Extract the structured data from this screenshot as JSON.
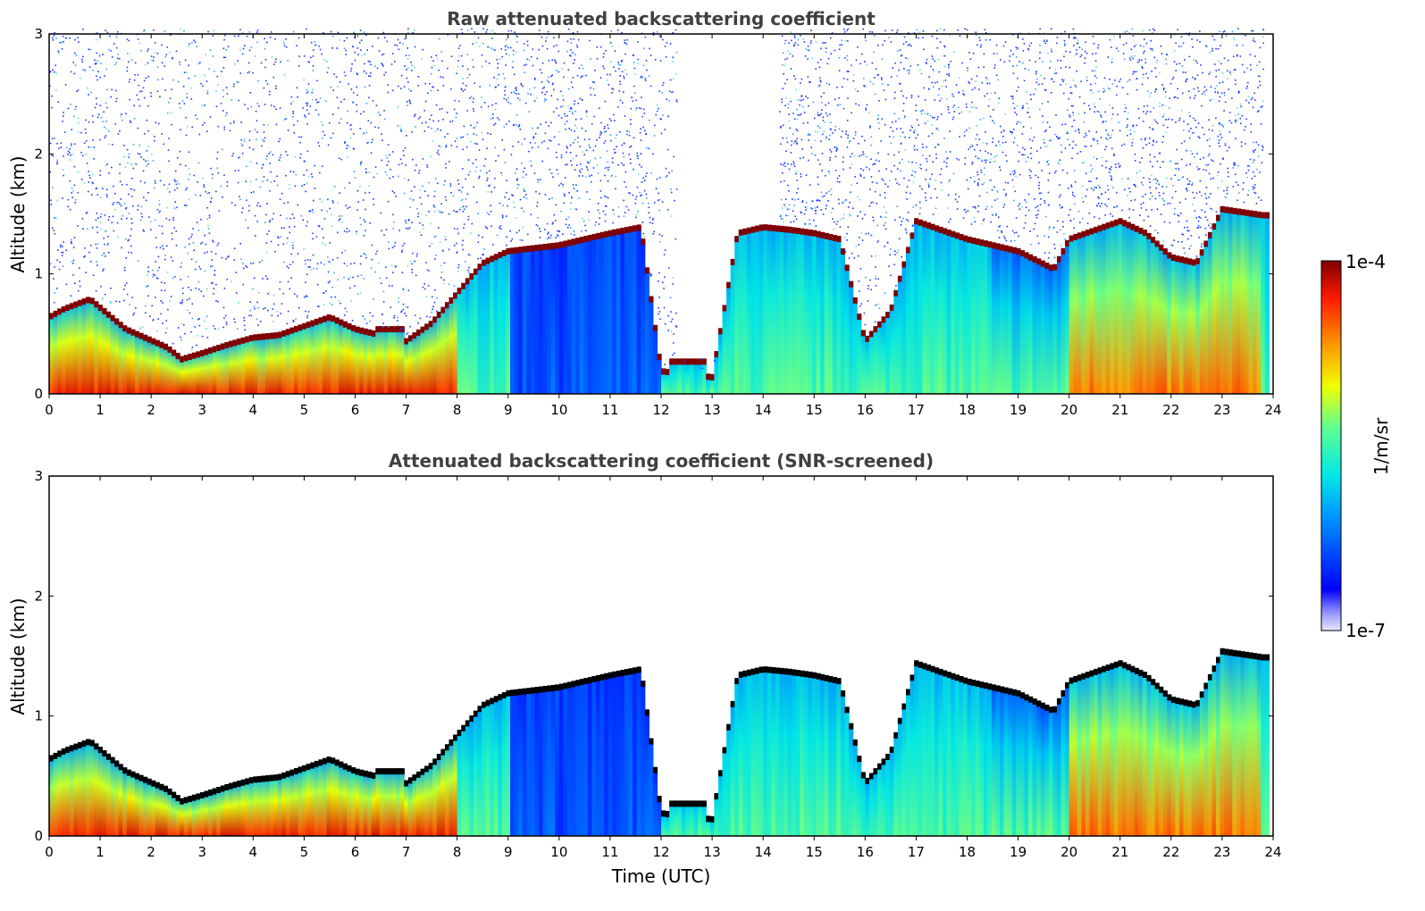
{
  "chart_data": [
    {
      "type": "heatmap",
      "title": "Raw attenuated backscattering coefficient",
      "xlabel": "",
      "ylabel": "Altitude (km)",
      "xlim": [
        0,
        24
      ],
      "ylim": [
        0,
        3
      ],
      "x_ticks": [
        "0",
        "1",
        "2",
        "3",
        "4",
        "5",
        "6",
        "7",
        "8",
        "9",
        "10",
        "11",
        "12",
        "13",
        "14",
        "15",
        "16",
        "17",
        "18",
        "19",
        "20",
        "21",
        "22",
        "23",
        "24"
      ],
      "y_ticks": [
        "0",
        "1",
        "2",
        "3"
      ],
      "noise_above_layer": true,
      "cloud_color": "#7f0000",
      "colorbar": {
        "label": "1/m/sr",
        "min_label": "1e-7",
        "max_label": "1e-4",
        "scale": "log"
      },
      "cloud_base_series": {
        "name": "",
        "x": [
          0,
          0.3,
          0.8,
          1.5,
          2.3,
          2.6,
          3.0,
          3.5,
          4.0,
          4.5,
          5.5,
          6.0,
          6.5,
          7.0,
          7.5,
          8.0,
          8.5,
          9.0,
          10.0,
          11.0,
          11.6,
          12.0,
          13.0,
          13.5,
          14.0,
          14.5,
          15.0,
          15.5,
          16.0,
          16.5,
          17.0,
          18.0,
          19.0,
          19.7,
          20.0,
          21.0,
          21.5,
          22.0,
          22.5,
          23.0,
          23.8
        ],
        "y": [
          0.65,
          0.72,
          0.8,
          0.55,
          0.4,
          0.3,
          0.35,
          0.42,
          0.48,
          0.5,
          0.65,
          0.55,
          0.5,
          0.45,
          0.6,
          0.85,
          1.1,
          1.2,
          1.25,
          1.35,
          1.4,
          0.2,
          0.15,
          1.35,
          1.4,
          1.38,
          1.35,
          1.3,
          0.45,
          0.7,
          1.45,
          1.3,
          1.2,
          1.05,
          1.3,
          1.45,
          1.35,
          1.15,
          1.1,
          1.55,
          1.5
        ]
      }
    },
    {
      "type": "heatmap",
      "title": "Attenuated backscattering coefficient (SNR-screened)",
      "xlabel": "Time (UTC)",
      "ylabel": "Altitude (km)",
      "xlim": [
        0,
        24
      ],
      "ylim": [
        0,
        3
      ],
      "x_ticks": [
        "0",
        "1",
        "2",
        "3",
        "4",
        "5",
        "6",
        "7",
        "8",
        "9",
        "10",
        "11",
        "12",
        "13",
        "14",
        "15",
        "16",
        "17",
        "18",
        "19",
        "20",
        "21",
        "22",
        "23",
        "24"
      ],
      "y_ticks": [
        "0",
        "1",
        "2",
        "3"
      ],
      "noise_above_layer": false,
      "cloud_color": "#000000",
      "colorbar": {
        "label": "1/m/sr",
        "min_label": "1e-7",
        "max_label": "1e-4",
        "scale": "log"
      },
      "cloud_base_series": {
        "name": "",
        "x": [
          0,
          0.3,
          0.8,
          1.5,
          2.3,
          2.6,
          3.0,
          3.5,
          4.0,
          4.5,
          5.5,
          6.0,
          6.5,
          7.0,
          7.5,
          8.0,
          8.5,
          9.0,
          10.0,
          11.0,
          11.6,
          12.0,
          13.0,
          13.5,
          14.0,
          14.5,
          15.0,
          15.5,
          16.0,
          16.5,
          17.0,
          18.0,
          19.0,
          19.7,
          20.0,
          21.0,
          21.5,
          22.0,
          22.5,
          23.0,
          23.8
        ],
        "y": [
          0.65,
          0.72,
          0.8,
          0.55,
          0.4,
          0.3,
          0.35,
          0.42,
          0.48,
          0.5,
          0.65,
          0.55,
          0.5,
          0.45,
          0.6,
          0.85,
          1.1,
          1.2,
          1.25,
          1.35,
          1.4,
          0.2,
          0.15,
          1.35,
          1.4,
          1.38,
          1.35,
          1.3,
          0.45,
          0.7,
          1.45,
          1.3,
          1.2,
          1.05,
          1.3,
          1.45,
          1.35,
          1.15,
          1.1,
          1.55,
          1.5
        ]
      }
    }
  ],
  "colorbar": {
    "label": "1/m/sr",
    "max_label": "1e-4",
    "min_label": "1e-7"
  }
}
